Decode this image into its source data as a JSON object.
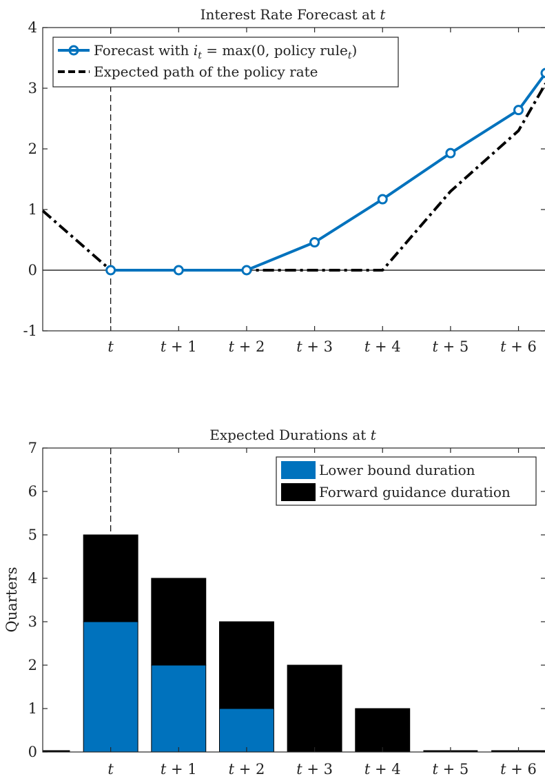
{
  "chart_data": [
    {
      "type": "line",
      "title_prefix": "Interest Rate Forecast at ",
      "title_var": "t",
      "xlabel": "",
      "ylabel": "",
      "ylim": [
        -1,
        4
      ],
      "yticks": [
        -1,
        0,
        1,
        2,
        3,
        4
      ],
      "xlim": [
        -1,
        6.4
      ],
      "xticks": [
        {
          "x": 0,
          "label": "t"
        },
        {
          "x": 1,
          "label": "t + 1"
        },
        {
          "x": 2,
          "label": "t + 2"
        },
        {
          "x": 3,
          "label": "t + 3"
        },
        {
          "x": 4,
          "label": "t + 4"
        },
        {
          "x": 5,
          "label": "t + 5"
        },
        {
          "x": 6,
          "label": "t + 6"
        }
      ],
      "grid": false,
      "legend_position": "top-left",
      "series": [
        {
          "name_prefix": "Forecast with ",
          "name_math": "i",
          "name_math_sub": "t",
          "name_mid": " = max(0, policy rule",
          "name_sub2": "t",
          "name_suffix": ")",
          "color": "#0072BD",
          "style": "solid-circle-markers",
          "x": [
            0,
            1,
            2,
            3,
            4,
            5,
            6,
            6.4
          ],
          "y": [
            0,
            0,
            0,
            0.46,
            1.17,
            1.93,
            2.64,
            3.25
          ]
        },
        {
          "name": "Expected path of the policy rate",
          "color": "#000000",
          "style": "dash-dot",
          "x": [
            -1,
            0,
            1,
            2,
            3,
            4,
            5,
            6,
            6.4
          ],
          "y": [
            0.98,
            0,
            0,
            0,
            0,
            0,
            1.3,
            2.3,
            3.08
          ]
        }
      ],
      "vline_x": 0,
      "hline_y": 0
    },
    {
      "type": "bar",
      "stacked": true,
      "title_prefix": "Expected Durations at ",
      "title_var": "t",
      "ylabel": "Quarters",
      "xlabel": "",
      "ylim": [
        0,
        7
      ],
      "yticks": [
        0,
        1,
        2,
        3,
        4,
        5,
        6,
        7
      ],
      "xlim": [
        -1,
        6.4
      ],
      "categories": [
        "t",
        "t + 1",
        "t + 2",
        "t + 3",
        "t + 4",
        "t + 5",
        "t + 6"
      ],
      "category_x": [
        0,
        1,
        2,
        3,
        4,
        5,
        6
      ],
      "series": [
        {
          "name": "Lower bound duration",
          "color": "#0072BD",
          "values": [
            3,
            2,
            1,
            0,
            0,
            0,
            0
          ]
        },
        {
          "name": "Forward guidance duration",
          "color": "#000000",
          "values": [
            2,
            2,
            2,
            2,
            1,
            0,
            0
          ]
        }
      ],
      "legend_position": "top-right",
      "grid": false,
      "vline_x": 0
    }
  ]
}
